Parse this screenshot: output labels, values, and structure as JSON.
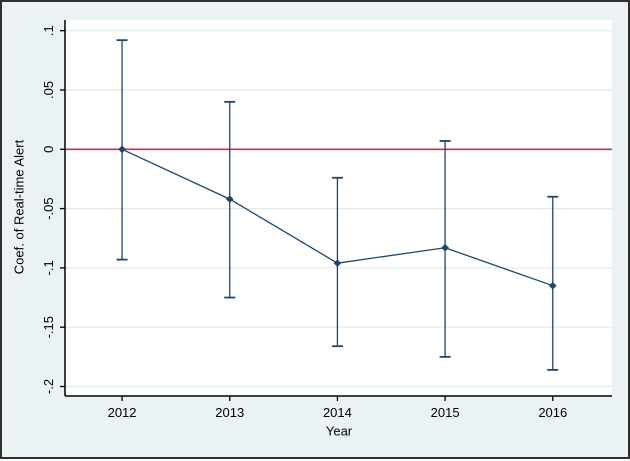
{
  "figure": {
    "background_color": "#eaf2f3",
    "plot_background_color": "#ffffff",
    "grid_color": "#e0ebee",
    "axis_color": "#000000",
    "border_color": "#303030",
    "text_color": "#000000"
  },
  "chart_data": {
    "type": "line",
    "title": "",
    "xlabel": "Year",
    "ylabel": "Coef. of Real-time Alert",
    "x": [
      2012,
      2013,
      2014,
      2015,
      2016
    ],
    "series": [
      {
        "name": "Coef. of Real-time Alert",
        "color": "#1a476f",
        "marker": "diamond",
        "values": [
          0.0,
          -0.042,
          -0.096,
          -0.083,
          -0.115
        ],
        "ci_upper": [
          0.092,
          0.04,
          -0.024,
          0.007,
          -0.04
        ],
        "ci_lower": [
          -0.093,
          -0.125,
          -0.166,
          -0.175,
          -0.186
        ]
      }
    ],
    "error_bars": true,
    "reference_line": {
      "y": 0,
      "color": "#cc2e43"
    },
    "xlim": [
      2011.47,
      2016.55
    ],
    "ylim": [
      -0.208,
      0.109
    ],
    "xticks": {
      "values": [
        2012,
        2013,
        2014,
        2015,
        2016
      ],
      "labels": [
        "2012",
        "2013",
        "2014",
        "2015",
        "2016"
      ]
    },
    "yticks": {
      "values": [
        0.1,
        0.05,
        0,
        -0.05,
        -0.1,
        -0.15,
        -0.2
      ],
      "labels": [
        ".1",
        ".05",
        "0",
        "-.05",
        "-.1",
        "-.15",
        "-.2"
      ]
    },
    "grid": true,
    "legend_position": "none"
  }
}
